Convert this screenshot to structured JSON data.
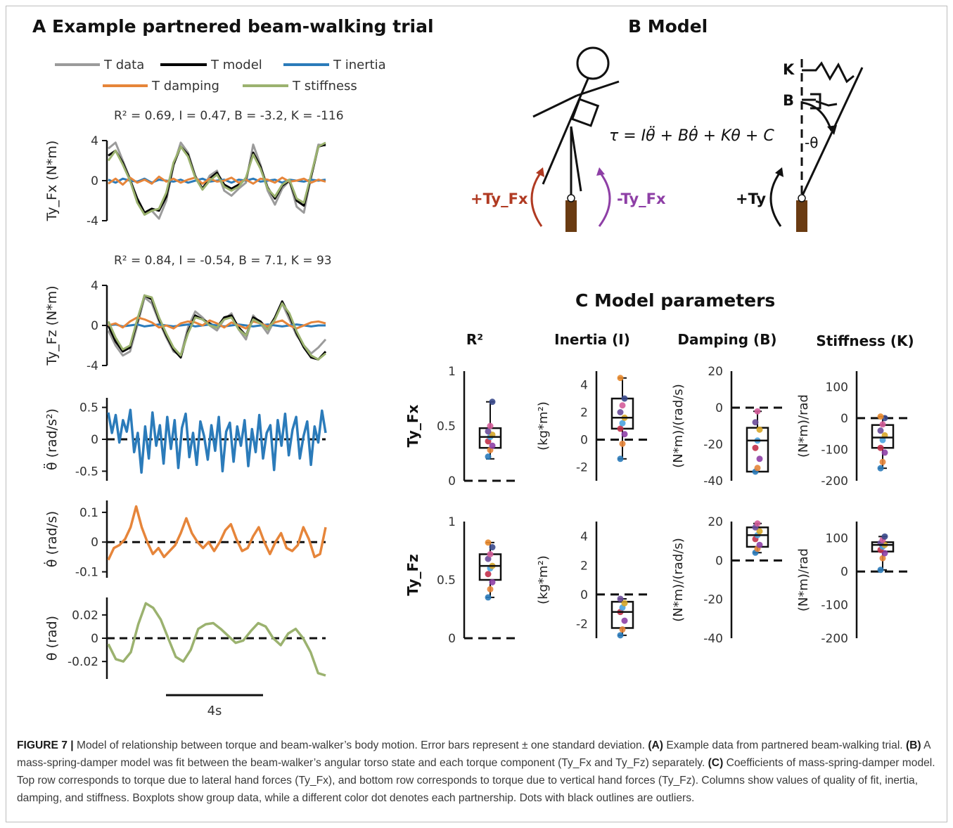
{
  "colors": {
    "data": "#9b9b9b",
    "model": "#000000",
    "inertia": "#2b7bba",
    "damping": "#e6853a",
    "stiffness": "#9bb26f",
    "pos_torque": "#b03a22",
    "neg_torque": "#8e3fa6",
    "beam": "#6a3b12"
  },
  "panelA": {
    "title": "A  Example partnered beam-walking trial",
    "legend": [
      "T data",
      "T model",
      "T inertia",
      "T damping",
      "T stiffness"
    ],
    "fit1": "R² = 0.69, I = 0.47, B = -3.2, K = -116",
    "fit2": "R² = 0.84, I = -0.54, B = 7.1, K = 93",
    "scalebar": "4s"
  },
  "panelB": {
    "title": "B  Model",
    "equation": "τ = Iθ̈ + Bθ̇ + Kθ + C",
    "pos_label": "+Ty_Fx",
    "neg_label": "-Ty_Fx",
    "ty_label": "+Ty",
    "k": "K",
    "b": "B",
    "theta": "-θ"
  },
  "panelC": {
    "title": "C  Model parameters",
    "col_headers": [
      "R²",
      "Inertia (I)",
      "Damping (B)",
      "Stiffness (K)"
    ],
    "row_labels": [
      "Ty_Fx",
      "Ty_Fz"
    ]
  },
  "chart_data": [
    {
      "type": "line",
      "ylabel": "Ty_Fx (N*m)",
      "ylim": [
        -4,
        4
      ],
      "yticks": [
        "4",
        "0",
        "-4"
      ],
      "series": [
        {
          "name": "T data",
          "values": [
            3.2,
            3.8,
            2.0,
            0.2,
            -2.0,
            -3.4,
            -3.0,
            -3.8,
            -2.0,
            1.5,
            3.8,
            2.8,
            0.5,
            -0.8,
            0.5,
            1.0,
            -1.0,
            -1.5,
            -0.8,
            -0.2,
            3.6,
            1.6,
            -1.0,
            -2.4,
            -0.8,
            0.0,
            -2.6,
            -3.2,
            0.5,
            3.6,
            3.5
          ]
        },
        {
          "name": "T model",
          "values": [
            2.5,
            3.0,
            1.8,
            0.1,
            -1.8,
            -3.2,
            -2.8,
            -3.0,
            -1.6,
            1.6,
            3.4,
            2.6,
            0.4,
            -0.8,
            0.2,
            0.8,
            -0.4,
            -0.8,
            -0.4,
            0.2,
            2.8,
            1.4,
            -0.7,
            -1.8,
            -0.5,
            0.0,
            -2.0,
            -2.5,
            0.4,
            3.4,
            3.6
          ]
        },
        {
          "name": "T inertia",
          "values": [
            0.1,
            -0.2,
            0.2,
            0.0,
            -0.1,
            0.2,
            -0.2,
            0.1,
            0.0,
            -0.1,
            0.1,
            -0.2,
            0.0,
            0.2,
            -0.1,
            0.0,
            0.1,
            -0.2,
            0.1,
            0.0,
            0.2,
            -0.1,
            0.0,
            0.1,
            -0.2,
            0.1,
            0.0,
            -0.1,
            0.1,
            0.0,
            0.1
          ]
        },
        {
          "name": "T damping",
          "values": [
            -0.3,
            0.2,
            -0.4,
            0.3,
            -0.2,
            0.1,
            -0.3,
            0.4,
            -0.1,
            0.2,
            -0.2,
            0.1,
            0.3,
            -0.3,
            0.2,
            -0.1,
            0.0,
            0.3,
            -0.2,
            0.1,
            -0.3,
            0.2,
            0.1,
            -0.2,
            0.3,
            -0.1,
            0.0,
            0.2,
            -0.2,
            0.1,
            -0.1
          ]
        },
        {
          "name": "T stiffness",
          "values": [
            2.0,
            3.0,
            1.6,
            0.0,
            -2.2,
            -3.4,
            -3.0,
            -2.8,
            -1.2,
            1.8,
            3.4,
            2.4,
            0.3,
            -0.9,
            0.0,
            0.6,
            -0.6,
            -1.0,
            -0.6,
            0.3,
            2.6,
            1.2,
            -0.8,
            -1.6,
            -0.4,
            0.1,
            -1.8,
            -2.2,
            0.6,
            3.4,
            3.8
          ]
        }
      ]
    },
    {
      "type": "line",
      "ylabel": "Ty_Fz (N*m)",
      "ylim": [
        -4,
        4
      ],
      "yticks": [
        "4",
        "0",
        "-4"
      ],
      "series": [
        {
          "name": "T data",
          "values": [
            -0.5,
            -2.0,
            -3.0,
            -2.6,
            0.0,
            2.8,
            2.2,
            0.4,
            -1.2,
            -2.6,
            -3.0,
            -0.2,
            1.4,
            0.8,
            0.0,
            -0.5,
            0.6,
            1.2,
            -0.4,
            -1.4,
            1.0,
            0.2,
            -0.8,
            0.6,
            2.2,
            0.6,
            -1.0,
            -2.0,
            -2.8,
            -2.2,
            -1.4
          ]
        },
        {
          "name": "T model",
          "values": [
            0.0,
            -1.6,
            -2.6,
            -2.2,
            0.4,
            3.0,
            2.6,
            0.6,
            -1.0,
            -2.4,
            -3.2,
            -0.6,
            1.0,
            0.6,
            0.2,
            -0.2,
            0.8,
            1.0,
            -0.2,
            -1.0,
            0.8,
            0.4,
            -0.4,
            0.8,
            2.4,
            1.0,
            -0.8,
            -2.2,
            -3.2,
            -3.4,
            -2.6
          ]
        },
        {
          "name": "T inertia",
          "values": [
            0.0,
            0.1,
            -0.1,
            0.0,
            0.1,
            -0.1,
            0.0,
            0.1,
            0.0,
            -0.1,
            0.0,
            0.1,
            -0.1,
            0.0,
            0.1,
            0.0,
            -0.1,
            0.0,
            0.1,
            0.0,
            -0.1,
            0.0,
            0.1,
            0.0,
            -0.1,
            0.0,
            0.1,
            0.0,
            -0.1,
            0.0,
            0.0
          ]
        },
        {
          "name": "T damping",
          "values": [
            0.0,
            0.2,
            -0.2,
            0.4,
            0.8,
            0.6,
            0.3,
            -0.2,
            0.0,
            -0.3,
            0.2,
            0.4,
            0.3,
            0.0,
            0.5,
            0.2,
            -0.2,
            0.3,
            0.0,
            -0.3,
            0.4,
            0.2,
            -0.1,
            0.3,
            0.5,
            0.0,
            -0.3,
            0.0,
            0.3,
            0.4,
            0.2
          ]
        },
        {
          "name": "T stiffness",
          "values": [
            0.4,
            -1.2,
            -2.4,
            -2.0,
            0.6,
            3.0,
            2.8,
            0.8,
            -0.8,
            -2.2,
            -3.0,
            -0.8,
            0.8,
            0.6,
            0.0,
            -0.2,
            0.6,
            0.8,
            -0.4,
            -1.0,
            0.6,
            0.2,
            -0.4,
            0.6,
            2.2,
            1.2,
            -0.6,
            -2.0,
            -3.0,
            -3.4,
            -2.8
          ]
        }
      ]
    },
    {
      "type": "line",
      "ylabel": "θ̈ (rad/s²)",
      "ylim": [
        -0.65,
        0.65
      ],
      "yticks": [
        "0.5",
        "0",
        "-0.5"
      ],
      "series": [
        {
          "name": "θ̈",
          "values": [
            0.42,
            0.1,
            0.38,
            -0.05,
            0.3,
            0.12,
            0.46,
            -0.2,
            0.1,
            -0.52,
            0.2,
            -0.3,
            0.42,
            -0.1,
            0.22,
            -0.38,
            0.35,
            -0.15,
            0.3,
            -0.45,
            0.18,
            0.4,
            -0.28,
            0.1,
            -0.4,
            0.28,
            0.05,
            -0.32,
            0.22,
            -0.18,
            0.35,
            -0.5,
            0.12,
            0.26,
            -0.35,
            0.2,
            -0.1,
            0.3,
            -0.42,
            0.16,
            -0.2,
            0.38,
            -0.3,
            0.1,
            0.22,
            -0.48,
            0.3,
            -0.1,
            0.4,
            -0.25,
            0.15,
            0.35,
            -0.3,
            0.05,
            0.28,
            -0.4,
            0.2,
            -0.05,
            0.45,
            0.1
          ]
        }
      ]
    },
    {
      "type": "line",
      "ylabel": "θ̇ (rad/s)",
      "ylim": [
        -0.12,
        0.14
      ],
      "yticks": [
        "0.1",
        "0",
        "-0.1"
      ],
      "series": [
        {
          "name": "θ̇",
          "values": [
            -0.06,
            -0.02,
            -0.01,
            0.01,
            0.05,
            0.12,
            0.05,
            0.0,
            -0.04,
            -0.02,
            -0.05,
            -0.03,
            -0.01,
            0.03,
            0.08,
            0.03,
            0.0,
            -0.02,
            0.0,
            -0.03,
            0.0,
            0.04,
            0.06,
            0.01,
            -0.03,
            -0.02,
            0.02,
            0.05,
            0.0,
            -0.04,
            0.0,
            0.03,
            -0.02,
            -0.03,
            -0.01,
            0.05,
            0.01,
            -0.05,
            -0.04,
            0.05
          ]
        }
      ]
    },
    {
      "type": "line",
      "ylabel": "θ (rad)",
      "ylim": [
        -0.035,
        0.035
      ],
      "yticks": [
        "0.02",
        "0",
        "-0.02"
      ],
      "series": [
        {
          "name": "θ",
          "values": [
            -0.005,
            -0.018,
            -0.02,
            -0.012,
            0.012,
            0.03,
            0.026,
            0.016,
            0.0,
            -0.016,
            -0.02,
            -0.01,
            0.008,
            0.012,
            0.013,
            0.008,
            0.002,
            -0.004,
            -0.002,
            0.006,
            0.013,
            0.01,
            0.0,
            -0.006,
            0.004,
            0.008,
            0.0,
            -0.012,
            -0.03,
            -0.032
          ]
        }
      ]
    },
    {
      "type": "box",
      "ylabel": "",
      "ylim": [
        0,
        1
      ],
      "yticks": [
        "1",
        "0.5",
        "0"
      ],
      "ref": 0,
      "box": {
        "min": 0.2,
        "q1": 0.3,
        "median": 0.4,
        "q3": 0.48,
        "max": 0.72
      },
      "points": [
        0.22,
        0.28,
        0.32,
        0.36,
        0.4,
        0.42,
        0.45,
        0.5,
        0.72
      ]
    },
    {
      "type": "box",
      "ylabel": "(kg*m²)",
      "ylim": [
        -3,
        5
      ],
      "yticks": [
        "4",
        "2",
        "0",
        "-2"
      ],
      "ref": 0,
      "box": {
        "min": -1.4,
        "q1": 0.8,
        "median": 1.6,
        "q3": 3.0,
        "max": 4.5
      },
      "points": [
        -1.4,
        -0.3,
        0.4,
        0.8,
        1.2,
        1.6,
        2.0,
        2.5,
        3.0,
        4.5
      ]
    },
    {
      "type": "box",
      "ylabel": "(N*m)/(rad/s)",
      "ylim": [
        -40,
        20
      ],
      "yticks": [
        "20",
        "0",
        "-20",
        "-40"
      ],
      "ref": 0,
      "box": {
        "min": -35,
        "q1": -35,
        "median": -18,
        "q3": -11,
        "max": -2
      },
      "points": [
        -35,
        -33,
        -28,
        -22,
        -18,
        -12,
        -8,
        -2
      ]
    },
    {
      "type": "box",
      "ylabel": "(N*m)/rad",
      "ylim": [
        -200,
        150
      ],
      "yticks": [
        "100",
        "0",
        "-100",
        "-200"
      ],
      "ref": 0,
      "box": {
        "min": -160,
        "q1": -95,
        "median": -62,
        "q3": -22,
        "max": 5
      },
      "points": [
        -160,
        -140,
        -110,
        -95,
        -70,
        -55,
        -40,
        -20,
        0,
        5
      ]
    },
    {
      "type": "box",
      "ylabel": "",
      "ylim": [
        0,
        1
      ],
      "yticks": [
        "1",
        "0.5",
        "0"
      ],
      "ref": 0,
      "box": {
        "min": 0.35,
        "q1": 0.5,
        "median": 0.62,
        "q3": 0.72,
        "max": 0.82
      },
      "points": [
        0.35,
        0.42,
        0.48,
        0.55,
        0.6,
        0.62,
        0.68,
        0.72,
        0.78,
        0.82
      ]
    },
    {
      "type": "box",
      "ylabel": "(kg*m²)",
      "ylim": [
        -3,
        5
      ],
      "yticks": [
        "4",
        "2",
        "0",
        "-2"
      ],
      "ref": 0,
      "box": {
        "min": -2.8,
        "q1": -2.3,
        "median": -1.2,
        "q3": -0.5,
        "max": -0.3
      },
      "points": [
        -2.8,
        -2.4,
        -1.8,
        -1.2,
        -0.9,
        -0.6,
        -0.3
      ]
    },
    {
      "type": "box",
      "ylabel": "(N*m)/(rad/s)",
      "ylim": [
        -40,
        20
      ],
      "yticks": [
        "20",
        "0",
        "-20",
        "-40"
      ],
      "ref": 0,
      "box": {
        "min": 4,
        "q1": 7,
        "median": 13,
        "q3": 17,
        "max": 19
      },
      "points": [
        4,
        6,
        8,
        11,
        13,
        15,
        17,
        19
      ]
    },
    {
      "type": "box",
      "ylabel": "(N*m)/rad",
      "ylim": [
        -200,
        150
      ],
      "yticks": [
        "100",
        "0",
        "-100",
        "-200"
      ],
      "ref": 0,
      "box": {
        "min": 5,
        "q1": 60,
        "median": 80,
        "q3": 88,
        "max": 105
      },
      "points": [
        5,
        40,
        55,
        65,
        75,
        80,
        85,
        95,
        105
      ]
    }
  ],
  "caption": {
    "label": "FIGURE 7 |",
    "intro": " Model of relationship between torque and beam-walker’s body motion. Error bars represent ± one standard deviation. ",
    "a_label": "(A)",
    "a_text": " Example data from partnered beam-walking trial. ",
    "b_label": "(B)",
    "b_text": " A mass-spring-damper model was fit between the beam-walker’s angular torso state and each torque component (Ty_Fx and Ty_Fz) separately. ",
    "c_label": "(C)",
    "c_text": " Coefficients of mass-spring-damper model. Top row corresponds to torque due to lateral hand forces (Ty_Fx), and bottom row corresponds to torque due to vertical hand forces (Ty_Fz). Columns show values of quality of fit, inertia, damping, and stiffness. Boxplots show group data, while a different color dot denotes each partnership. Dots with black outlines are outliers."
  }
}
